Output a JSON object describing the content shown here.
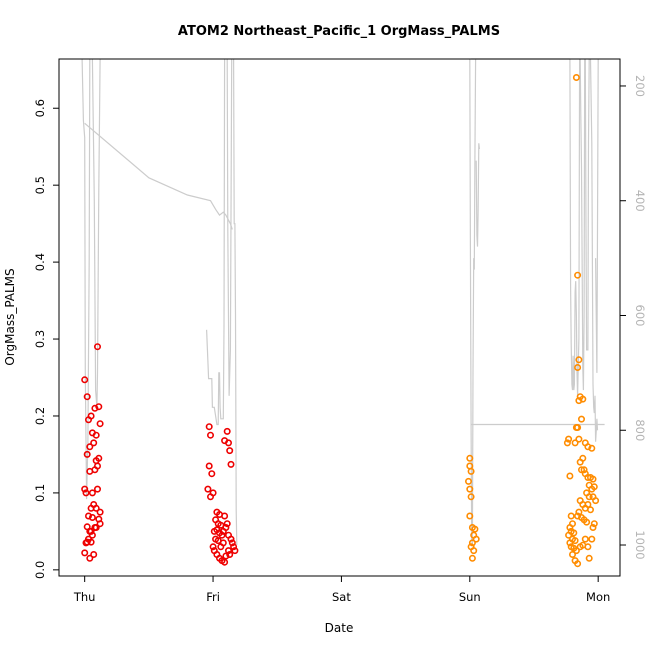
{
  "chart_data": {
    "type": "scatter",
    "title": "ATOM2 Northeast_Pacific_1 OrgMass_PALMS",
    "xlabel": "Date",
    "ylabel": "OrgMass_PALMS",
    "x_ticks": [
      "Thu",
      "Fri",
      "Sat",
      "Sun",
      "Mon"
    ],
    "xlim": [
      -0.2,
      4.17
    ],
    "ylim": [
      -0.008,
      0.664
    ],
    "y_ticks": [
      0.0,
      0.1,
      0.2,
      0.3,
      0.4,
      0.5,
      0.6
    ],
    "y_tick_labels": [
      "0.0",
      "0.1",
      "0.2",
      "0.3",
      "0.4",
      "0.5",
      "0.6"
    ],
    "right_axis": {
      "ticks": [
        200,
        400,
        600,
        800,
        1000
      ],
      "tick_labels": [
        "200",
        "400",
        "600",
        "800",
        "1000"
      ],
      "lim": [
        1054,
        153
      ],
      "color": "#b4b4b4"
    },
    "grid": false,
    "series": [
      {
        "color": "#ee0000",
        "points": [
          [
            0.0,
            0.247
          ],
          [
            0.02,
            0.225
          ],
          [
            0.05,
            0.2
          ],
          [
            0.03,
            0.195
          ],
          [
            0.1,
            0.29
          ],
          [
            0.11,
            0.212
          ],
          [
            0.08,
            0.21
          ],
          [
            0.12,
            0.19
          ],
          [
            0.06,
            0.178
          ],
          [
            0.09,
            0.175
          ],
          [
            0.04,
            0.16
          ],
          [
            0.07,
            0.165
          ],
          [
            0.02,
            0.15
          ],
          [
            0.11,
            0.145
          ],
          [
            0.09,
            0.142
          ],
          [
            0.1,
            0.135
          ],
          [
            0.08,
            0.13
          ],
          [
            0.04,
            0.128
          ],
          [
            0.06,
            0.1
          ],
          [
            0.0,
            0.105
          ],
          [
            0.01,
            0.1
          ],
          [
            0.1,
            0.105
          ],
          [
            0.07,
            0.085
          ],
          [
            0.05,
            0.08
          ],
          [
            0.09,
            0.08
          ],
          [
            0.12,
            0.075
          ],
          [
            0.03,
            0.07
          ],
          [
            0.06,
            0.068
          ],
          [
            0.11,
            0.066
          ],
          [
            0.12,
            0.06
          ],
          [
            0.02,
            0.056
          ],
          [
            0.08,
            0.055
          ],
          [
            0.04,
            0.05
          ],
          [
            0.05,
            0.05
          ],
          [
            0.06,
            0.045
          ],
          [
            0.03,
            0.04
          ],
          [
            0.02,
            0.036
          ],
          [
            0.01,
            0.035
          ],
          [
            0.05,
            0.036
          ],
          [
            0.0,
            0.022
          ],
          [
            0.07,
            0.02
          ],
          [
            0.04,
            0.015
          ],
          [
            0.09,
            0.055
          ],
          [
            0.97,
            0.186
          ],
          [
            0.98,
            0.175
          ],
          [
            0.97,
            0.135
          ],
          [
            0.99,
            0.125
          ],
          [
            0.96,
            0.105
          ],
          [
            0.98,
            0.095
          ],
          [
            1.0,
            0.1
          ],
          [
            1.03,
            0.075
          ],
          [
            1.05,
            0.072
          ],
          [
            1.02,
            0.065
          ],
          [
            1.04,
            0.06
          ],
          [
            1.06,
            0.058
          ],
          [
            1.03,
            0.052
          ],
          [
            1.01,
            0.05
          ],
          [
            1.05,
            0.048
          ],
          [
            1.07,
            0.045
          ],
          [
            1.02,
            0.04
          ],
          [
            1.04,
            0.038
          ],
          [
            1.0,
            0.03
          ],
          [
            1.01,
            0.025
          ],
          [
            1.03,
            0.02
          ],
          [
            1.05,
            0.015
          ],
          [
            1.07,
            0.012
          ],
          [
            1.09,
            0.01
          ],
          [
            1.1,
            0.018
          ],
          [
            1.12,
            0.025
          ],
          [
            1.13,
            0.02
          ],
          [
            1.09,
            0.07
          ],
          [
            1.11,
            0.06
          ],
          [
            1.1,
            0.055
          ],
          [
            1.08,
            0.05
          ],
          [
            1.12,
            0.045
          ],
          [
            1.14,
            0.04
          ],
          [
            1.15,
            0.035
          ],
          [
            1.16,
            0.03
          ],
          [
            1.17,
            0.025
          ],
          [
            1.11,
            0.18
          ],
          [
            1.09,
            0.168
          ],
          [
            1.12,
            0.165
          ],
          [
            1.13,
            0.155
          ],
          [
            1.14,
            0.137
          ],
          [
            1.08,
            0.035
          ],
          [
            1.06,
            0.03
          ]
        ]
      },
      {
        "color": "#ff8c00",
        "points": [
          [
            3.0,
            0.145
          ],
          [
            3.0,
            0.135
          ],
          [
            3.01,
            0.128
          ],
          [
            2.99,
            0.115
          ],
          [
            3.0,
            0.105
          ],
          [
            3.01,
            0.095
          ],
          [
            3.0,
            0.07
          ],
          [
            3.02,
            0.055
          ],
          [
            3.04,
            0.053
          ],
          [
            3.03,
            0.045
          ],
          [
            3.02,
            0.035
          ],
          [
            3.01,
            0.03
          ],
          [
            3.03,
            0.025
          ],
          [
            3.05,
            0.04
          ],
          [
            3.02,
            0.015
          ],
          [
            3.83,
            0.64
          ],
          [
            3.84,
            0.383
          ],
          [
            3.85,
            0.273
          ],
          [
            3.84,
            0.263
          ],
          [
            3.86,
            0.225
          ],
          [
            3.85,
            0.22
          ],
          [
            3.88,
            0.222
          ],
          [
            3.87,
            0.196
          ],
          [
            3.84,
            0.185
          ],
          [
            3.83,
            0.185
          ],
          [
            3.82,
            0.165
          ],
          [
            3.85,
            0.17
          ],
          [
            3.9,
            0.165
          ],
          [
            3.92,
            0.16
          ],
          [
            3.95,
            0.158
          ],
          [
            3.86,
            0.14
          ],
          [
            3.88,
            0.145
          ],
          [
            3.87,
            0.13
          ],
          [
            3.89,
            0.13
          ],
          [
            3.9,
            0.125
          ],
          [
            3.92,
            0.12
          ],
          [
            3.94,
            0.12
          ],
          [
            3.96,
            0.118
          ],
          [
            3.93,
            0.11
          ],
          [
            3.95,
            0.105
          ],
          [
            3.97,
            0.108
          ],
          [
            3.91,
            0.1
          ],
          [
            3.93,
            0.095
          ],
          [
            3.96,
            0.095
          ],
          [
            3.98,
            0.09
          ],
          [
            3.88,
            0.085
          ],
          [
            3.86,
            0.09
          ],
          [
            3.9,
            0.08
          ],
          [
            3.92,
            0.085
          ],
          [
            3.94,
            0.078
          ],
          [
            3.85,
            0.075
          ],
          [
            3.84,
            0.07
          ],
          [
            3.87,
            0.068
          ],
          [
            3.89,
            0.065
          ],
          [
            3.91,
            0.062
          ],
          [
            3.78,
            0.122
          ],
          [
            3.77,
            0.17
          ],
          [
            3.76,
            0.165
          ],
          [
            3.79,
            0.07
          ],
          [
            3.8,
            0.06
          ],
          [
            3.78,
            0.055
          ],
          [
            3.79,
            0.05
          ],
          [
            3.81,
            0.048
          ],
          [
            3.77,
            0.045
          ],
          [
            3.8,
            0.04
          ],
          [
            3.82,
            0.038
          ],
          [
            3.78,
            0.035
          ],
          [
            3.79,
            0.03
          ],
          [
            3.81,
            0.028
          ],
          [
            3.83,
            0.025
          ],
          [
            3.8,
            0.02
          ],
          [
            3.82,
            0.012
          ],
          [
            3.84,
            0.008
          ],
          [
            3.86,
            0.03
          ],
          [
            3.88,
            0.032
          ],
          [
            3.9,
            0.04
          ],
          [
            3.92,
            0.03
          ],
          [
            3.93,
            0.015
          ],
          [
            3.95,
            0.04
          ],
          [
            3.96,
            0.055
          ],
          [
            3.97,
            0.06
          ]
        ]
      }
    ],
    "altitude_trace": {
      "color": "#cccccc",
      "segments": [
        [
          [
            -0.02,
            153
          ],
          [
            -0.01,
            260
          ],
          [
            0.0,
            290
          ],
          [
            0.005,
            700
          ],
          [
            0.015,
            920
          ],
          [
            0.025,
            820
          ],
          [
            0.035,
            500
          ],
          [
            0.04,
            153
          ]
        ],
        [
          [
            0.06,
            153
          ],
          [
            0.075,
            400
          ],
          [
            0.085,
            730
          ],
          [
            0.095,
            760
          ],
          [
            0.1,
            700
          ],
          [
            0.11,
            380
          ],
          [
            0.12,
            153
          ]
        ],
        [
          [
            0.0,
            265
          ],
          [
            0.5,
            360
          ],
          [
            0.8,
            390
          ],
          [
            0.98,
            400
          ],
          [
            1.02,
            415
          ],
          [
            1.05,
            425
          ],
          [
            1.08,
            420
          ],
          [
            1.1,
            425
          ],
          [
            1.135,
            440
          ],
          [
            1.15,
            450
          ]
        ],
        [
          [
            0.95,
            625
          ],
          [
            0.96,
            680
          ],
          [
            0.965,
            710
          ],
          [
            0.99,
            710
          ],
          [
            0.995,
            760
          ],
          [
            1.01,
            760
          ],
          [
            1.03,
            790
          ],
          [
            1.04,
            790
          ],
          [
            1.045,
            700
          ],
          [
            1.05,
            700
          ],
          [
            1.055,
            760
          ],
          [
            1.06,
            780
          ],
          [
            1.08,
            780
          ],
          [
            1.085,
            620
          ],
          [
            1.09,
            153
          ]
        ],
        [
          [
            1.11,
            153
          ],
          [
            1.115,
            450
          ],
          [
            1.125,
            740
          ],
          [
            1.135,
            660
          ],
          [
            1.145,
            153
          ]
        ],
        [
          [
            1.16,
            153
          ],
          [
            1.165,
            440
          ],
          [
            1.17,
            440
          ],
          [
            1.175,
            600
          ],
          [
            1.18,
            940
          ],
          [
            1.185,
            1000
          ]
        ],
        [
          [
            3.0,
            153
          ],
          [
            3.005,
            480
          ],
          [
            3.01,
            800
          ],
          [
            3.015,
            990
          ],
          [
            3.02,
            1000
          ],
          [
            3.025,
            700
          ],
          [
            3.03,
            500
          ],
          [
            3.035,
            520
          ],
          [
            3.04,
            330
          ],
          [
            3.045,
            153
          ]
        ],
        [
          [
            3.05,
            330
          ],
          [
            3.055,
            460
          ],
          [
            3.06,
            480
          ],
          [
            3.065,
            420
          ],
          [
            3.07,
            300
          ],
          [
            3.075,
            310
          ]
        ],
        [
          [
            3.01,
            153
          ],
          [
            3.25,
            153
          ],
          [
            3.6,
            153
          ],
          [
            3.72,
            153
          ],
          [
            3.78,
            153
          ]
        ],
        [
          [
            3.01,
            790
          ],
          [
            3.5,
            790
          ],
          [
            3.8,
            790
          ],
          [
            3.9,
            790
          ],
          [
            3.96,
            790
          ],
          [
            3.98,
            790
          ],
          [
            4.05,
            790
          ]
        ],
        [
          [
            3.78,
            153
          ],
          [
            3.785,
            550
          ],
          [
            3.79,
            650
          ],
          [
            3.795,
            720
          ],
          [
            3.8,
            730
          ],
          [
            3.805,
            670
          ],
          [
            3.81,
            730
          ],
          [
            3.815,
            720
          ],
          [
            3.82,
            560
          ],
          [
            3.825,
            540
          ],
          [
            3.83,
            600
          ],
          [
            3.835,
            700
          ],
          [
            3.84,
            740
          ],
          [
            3.85,
            640
          ],
          [
            3.855,
            153
          ]
        ],
        [
          [
            3.86,
            153
          ],
          [
            3.865,
            250
          ],
          [
            3.87,
            340
          ],
          [
            3.875,
            500
          ],
          [
            3.88,
            690
          ],
          [
            3.885,
            730
          ],
          [
            3.89,
            600
          ],
          [
            3.895,
            153
          ]
        ],
        [
          [
            3.9,
            153
          ],
          [
            3.905,
            450
          ],
          [
            3.91,
            660
          ],
          [
            3.92,
            660
          ],
          [
            3.925,
            300
          ],
          [
            3.93,
            153
          ]
        ],
        [
          [
            3.94,
            153
          ],
          [
            3.95,
            300
          ],
          [
            3.96,
            720
          ],
          [
            3.965,
            760
          ],
          [
            3.97,
            770
          ],
          [
            3.975,
            740
          ],
          [
            3.98,
            820
          ],
          [
            3.985,
            800
          ],
          [
            3.99,
            780
          ],
          [
            3.995,
            800
          ]
        ],
        [
          [
            3.98,
            500
          ],
          [
            3.99,
            700
          ],
          [
            4.0,
            153
          ]
        ]
      ]
    }
  }
}
